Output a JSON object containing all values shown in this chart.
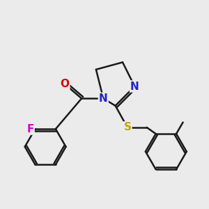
{
  "background_color": "#ebebeb",
  "bond_color": "#1a1a1a",
  "bond_width": 1.8,
  "atom_colors": {
    "O": "#dd0000",
    "N": "#2222cc",
    "F": "#dd00cc",
    "S": "#bbaa00",
    "C": "#1a1a1a"
  },
  "font_size": 11,
  "figsize": [
    3.0,
    3.0
  ],
  "dpi": 100
}
